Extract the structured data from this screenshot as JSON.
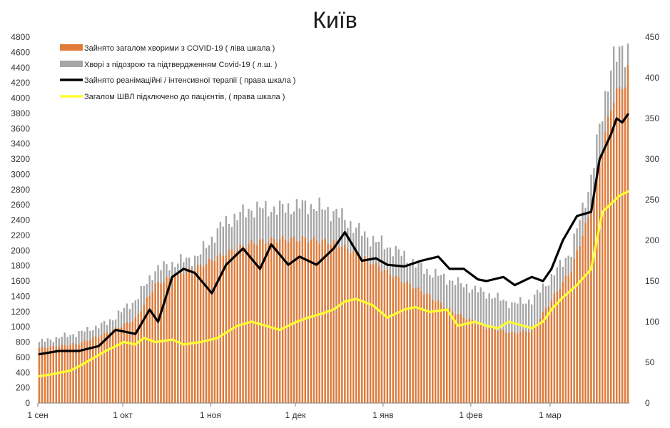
{
  "chart_data": {
    "type": "bar",
    "title": "Київ",
    "x_range": [
      "2020-09-01",
      "2021-03-28"
    ],
    "x_ticks": [
      "1 сен",
      "1 окт",
      "1 ноя",
      "1 дек",
      "1 янв",
      "1 фев",
      "1 мар"
    ],
    "left_axis": {
      "ylim": [
        0,
        4800
      ],
      "ticks": [
        0,
        200,
        400,
        600,
        800,
        1000,
        1200,
        1400,
        1600,
        1800,
        2000,
        2200,
        2400,
        2600,
        2800,
        3000,
        3200,
        3400,
        3600,
        3800,
        4000,
        4200,
        4400,
        4600,
        4800
      ]
    },
    "right_axis": {
      "ylim": [
        0,
        450
      ],
      "ticks": [
        0,
        50,
        100,
        150,
        200,
        250,
        300,
        350,
        400,
        450
      ]
    },
    "grid": false,
    "legend_position": "top-left",
    "series": [
      {
        "name": "Зайнято загалом хворими з COVID-19 ( ліва шкала )",
        "kind": "bar",
        "axis": "left",
        "color": "#e07b39",
        "keyframes": [
          [
            "2020-09-01",
            720
          ],
          [
            "2020-09-15",
            780
          ],
          [
            "2020-09-25",
            920
          ],
          [
            "2020-10-05",
            1100
          ],
          [
            "2020-10-12",
            1550
          ],
          [
            "2020-10-20",
            1700
          ],
          [
            "2020-10-27",
            1780
          ],
          [
            "2020-11-05",
            1950
          ],
          [
            "2020-11-15",
            2100
          ],
          [
            "2020-11-25",
            2150
          ],
          [
            "2020-12-05",
            2150
          ],
          [
            "2020-12-15",
            2100
          ],
          [
            "2020-12-25",
            1900
          ],
          [
            "2021-01-05",
            1650
          ],
          [
            "2021-01-15",
            1450
          ],
          [
            "2021-01-25",
            1200
          ],
          [
            "2021-02-05",
            1000
          ],
          [
            "2021-02-15",
            920
          ],
          [
            "2021-02-22",
            950
          ],
          [
            "2021-03-01",
            1350
          ],
          [
            "2021-03-08",
            1750
          ],
          [
            "2021-03-15",
            2550
          ],
          [
            "2021-03-22",
            3900
          ],
          [
            "2021-03-28",
            4350
          ]
        ]
      },
      {
        "name": "Хворі з підозрою та підтвердженням Covid-19 ( л.ш. )",
        "kind": "bar",
        "axis": "left",
        "color": "#a6a6a6",
        "keyframes": [
          [
            "2020-09-01",
            800
          ],
          [
            "2020-09-15",
            920
          ],
          [
            "2020-09-25",
            1050
          ],
          [
            "2020-10-05",
            1350
          ],
          [
            "2020-10-12",
            1750
          ],
          [
            "2020-10-20",
            1850
          ],
          [
            "2020-10-27",
            1920
          ],
          [
            "2020-11-05",
            2350
          ],
          [
            "2020-11-15",
            2550
          ],
          [
            "2020-11-25",
            2550
          ],
          [
            "2020-12-05",
            2600
          ],
          [
            "2020-12-15",
            2500
          ],
          [
            "2020-12-25",
            2200
          ],
          [
            "2021-01-05",
            2000
          ],
          [
            "2021-01-15",
            1750
          ],
          [
            "2021-01-25",
            1600
          ],
          [
            "2021-02-05",
            1450
          ],
          [
            "2021-02-15",
            1300
          ],
          [
            "2021-02-22",
            1350
          ],
          [
            "2021-03-01",
            1650
          ],
          [
            "2021-03-08",
            2000
          ],
          [
            "2021-03-15",
            2950
          ],
          [
            "2021-03-22",
            4450
          ],
          [
            "2021-03-28",
            4680
          ]
        ]
      },
      {
        "name": "Зайнято реанімаційні / інтенсивної терапії ( права шкала )",
        "kind": "line",
        "axis": "right",
        "color": "#000000",
        "points": [
          [
            "2020-09-01",
            60
          ],
          [
            "2020-09-08",
            64
          ],
          [
            "2020-09-15",
            64
          ],
          [
            "2020-09-22",
            70
          ],
          [
            "2020-09-25",
            80
          ],
          [
            "2020-09-28",
            90
          ],
          [
            "2020-10-05",
            85
          ],
          [
            "2020-10-10",
            115
          ],
          [
            "2020-10-13",
            100
          ],
          [
            "2020-10-18",
            155
          ],
          [
            "2020-10-22",
            165
          ],
          [
            "2020-10-26",
            160
          ],
          [
            "2020-11-01",
            135
          ],
          [
            "2020-11-06",
            170
          ],
          [
            "2020-11-12",
            190
          ],
          [
            "2020-11-18",
            165
          ],
          [
            "2020-11-22",
            195
          ],
          [
            "2020-11-28",
            170
          ],
          [
            "2020-12-02",
            180
          ],
          [
            "2020-12-08",
            170
          ],
          [
            "2020-12-14",
            190
          ],
          [
            "2020-12-18",
            210
          ],
          [
            "2020-12-24",
            175
          ],
          [
            "2020-12-29",
            178
          ],
          [
            "2021-01-02",
            170
          ],
          [
            "2021-01-08",
            168
          ],
          [
            "2021-01-14",
            175
          ],
          [
            "2021-01-20",
            180
          ],
          [
            "2021-01-24",
            165
          ],
          [
            "2021-01-29",
            165
          ],
          [
            "2021-02-03",
            152
          ],
          [
            "2021-02-06",
            150
          ],
          [
            "2021-02-12",
            155
          ],
          [
            "2021-02-16",
            145
          ],
          [
            "2021-02-22",
            155
          ],
          [
            "2021-02-26",
            150
          ],
          [
            "2021-03-01",
            165
          ],
          [
            "2021-03-05",
            200
          ],
          [
            "2021-03-10",
            230
          ],
          [
            "2021-03-15",
            235
          ],
          [
            "2021-03-18",
            300
          ],
          [
            "2021-03-22",
            330
          ],
          [
            "2021-03-24",
            350
          ],
          [
            "2021-03-26",
            345
          ],
          [
            "2021-03-28",
            355
          ]
        ]
      },
      {
        "name": "Загалом ШВЛ  підключено до пацієнтів, ( права шкала )",
        "kind": "line",
        "axis": "right",
        "color": "#ffff33",
        "points": [
          [
            "2020-09-01",
            33
          ],
          [
            "2020-09-05",
            35
          ],
          [
            "2020-09-12",
            40
          ],
          [
            "2020-09-15",
            45
          ],
          [
            "2020-09-20",
            55
          ],
          [
            "2020-09-25",
            65
          ],
          [
            "2020-10-01",
            75
          ],
          [
            "2020-10-05",
            72
          ],
          [
            "2020-10-08",
            80
          ],
          [
            "2020-10-12",
            75
          ],
          [
            "2020-10-18",
            78
          ],
          [
            "2020-10-22",
            72
          ],
          [
            "2020-10-28",
            75
          ],
          [
            "2020-11-03",
            80
          ],
          [
            "2020-11-10",
            95
          ],
          [
            "2020-11-15",
            100
          ],
          [
            "2020-11-20",
            95
          ],
          [
            "2020-11-25",
            90
          ],
          [
            "2020-12-01",
            100
          ],
          [
            "2020-12-05",
            105
          ],
          [
            "2020-12-10",
            110
          ],
          [
            "2020-12-14",
            115
          ],
          [
            "2020-12-18",
            125
          ],
          [
            "2020-12-22",
            128
          ],
          [
            "2020-12-28",
            120
          ],
          [
            "2021-01-02",
            105
          ],
          [
            "2021-01-08",
            115
          ],
          [
            "2021-01-12",
            118
          ],
          [
            "2021-01-17",
            112
          ],
          [
            "2021-01-23",
            115
          ],
          [
            "2021-01-27",
            95
          ],
          [
            "2021-02-02",
            100
          ],
          [
            "2021-02-06",
            95
          ],
          [
            "2021-02-10",
            92
          ],
          [
            "2021-02-14",
            100
          ],
          [
            "2021-02-18",
            96
          ],
          [
            "2021-02-22",
            92
          ],
          [
            "2021-02-26",
            100
          ],
          [
            "2021-03-01",
            115
          ],
          [
            "2021-03-05",
            130
          ],
          [
            "2021-03-10",
            145
          ],
          [
            "2021-03-15",
            165
          ],
          [
            "2021-03-19",
            235
          ],
          [
            "2021-03-22",
            245
          ],
          [
            "2021-03-25",
            255
          ],
          [
            "2021-03-28",
            260
          ]
        ]
      }
    ]
  }
}
